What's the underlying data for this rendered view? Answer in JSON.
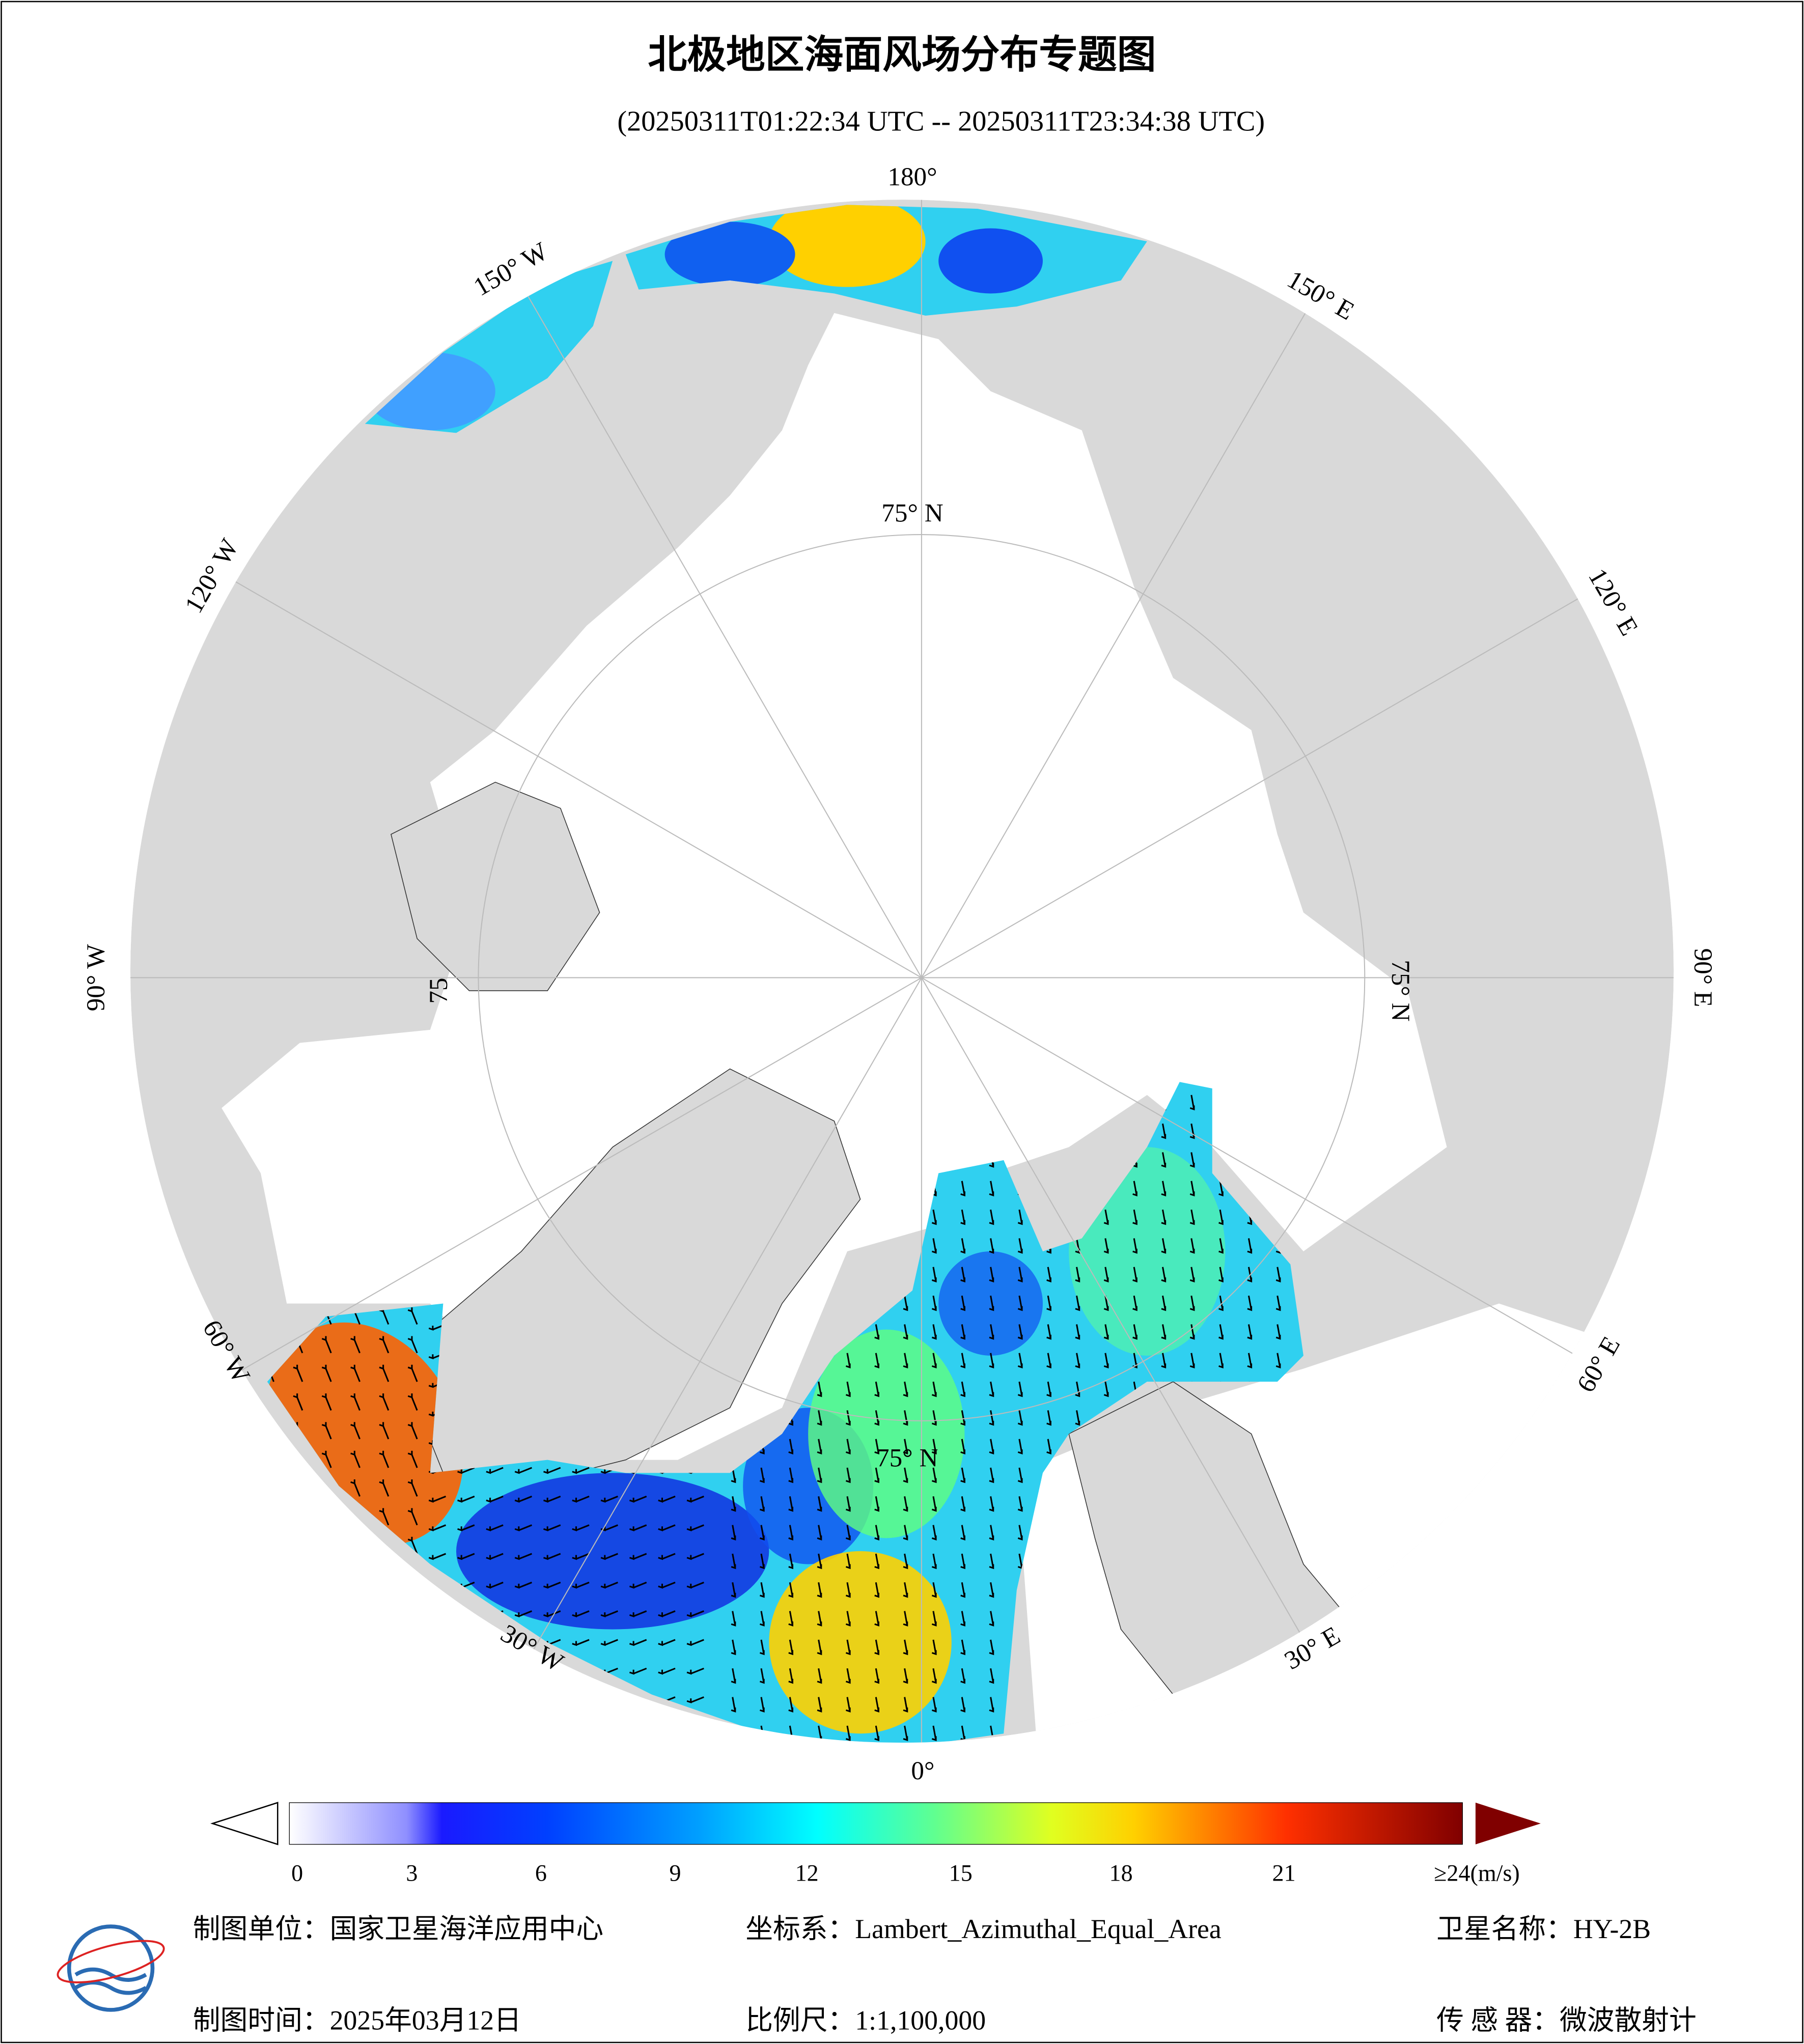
{
  "title": "北极地区海面风场分布专题图",
  "subtitle": "(20250311T01:22:34 UTC -- 20250311T23:34:38 UTC)",
  "map": {
    "meridian_labels": [
      "180°",
      "150° E",
      "120° E",
      "90° E",
      "60° E",
      "30° E",
      "0°",
      "30° W",
      "60° W",
      "90° W",
      "120° W",
      "150° W"
    ],
    "parallel_labels": [
      "75° N",
      "75° N",
      "75",
      "75° N"
    ]
  },
  "colorbar": {
    "ticks": [
      0,
      3,
      6,
      9,
      12,
      15,
      18,
      21
    ],
    "max_label": "≥24(m/s)"
  },
  "footer": {
    "unit": "制图单位：国家卫星海洋应用中心",
    "crs": "坐标系：Lambert_Azimuthal_Equal_Area",
    "satellite": "卫星名称：HY-2B",
    "date": "制图时间：2025年03月12日",
    "scale": "比例尺：1:1,100,000",
    "sensor": "传 感 器：微波散射计"
  }
}
